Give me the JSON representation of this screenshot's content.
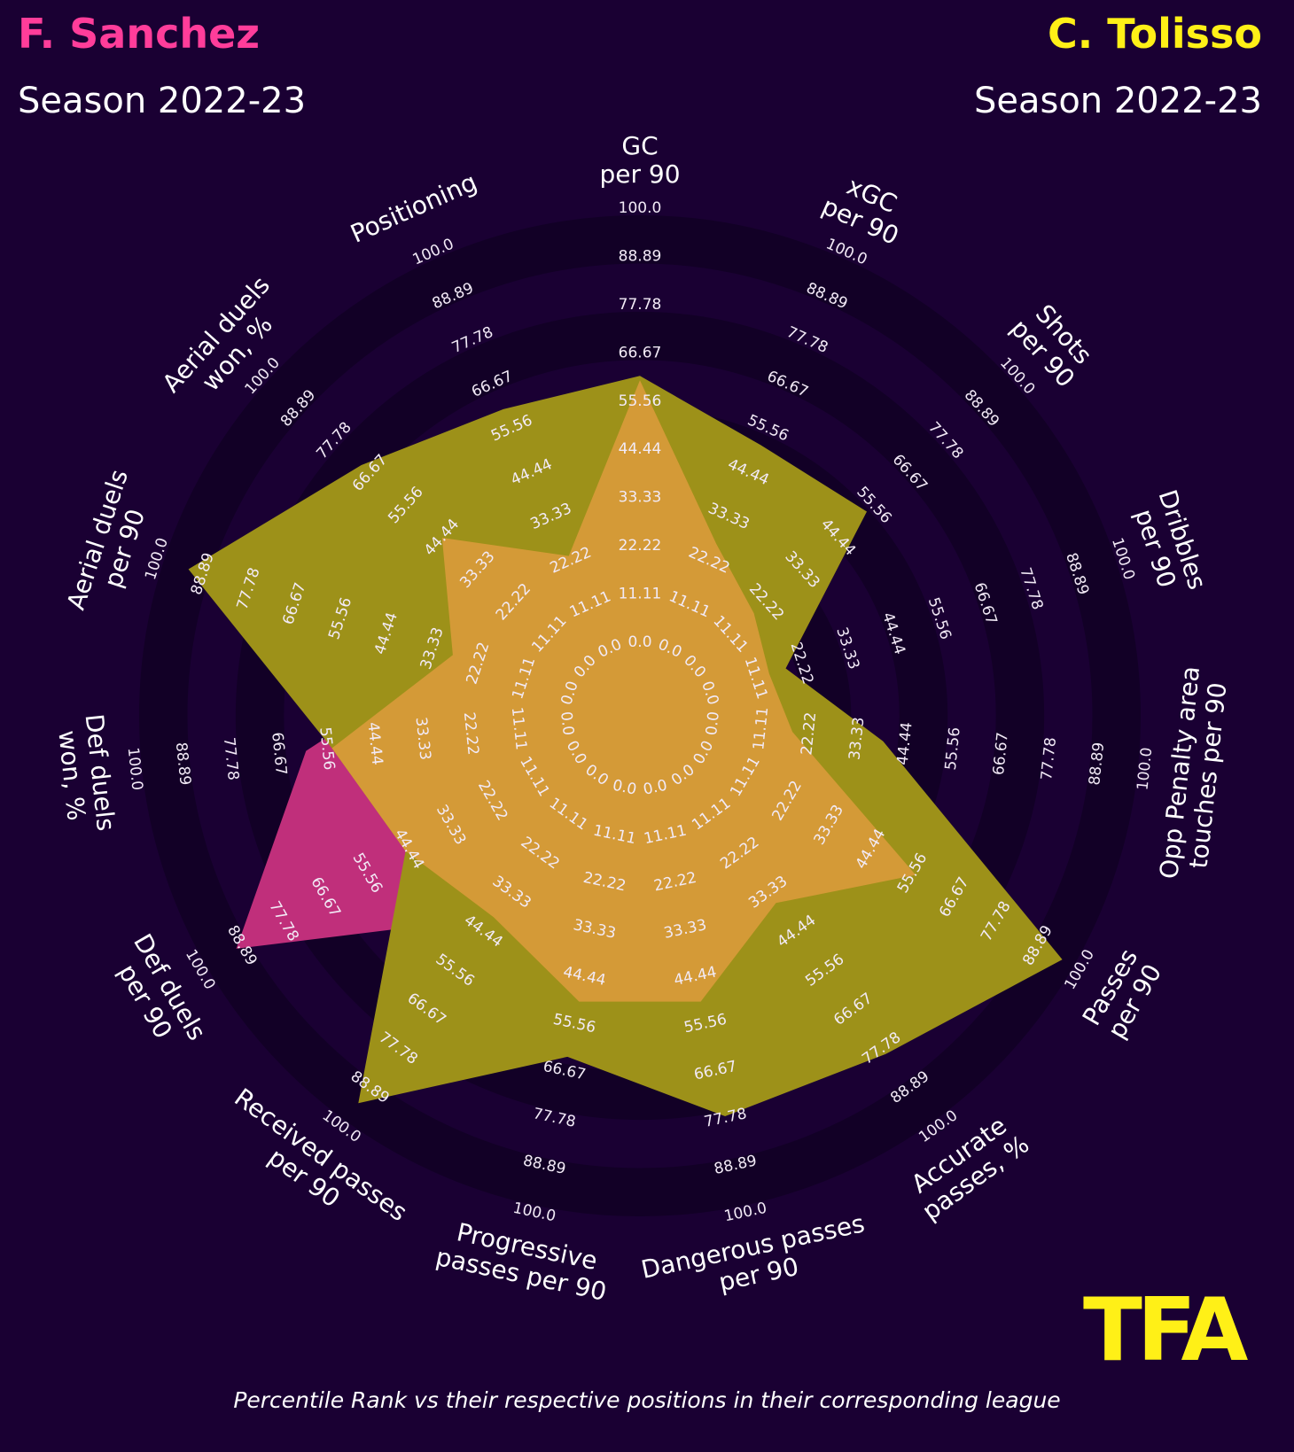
{
  "players": [
    {
      "name": "F. Sanchez",
      "season": "Season 2022-23",
      "color": "#ff3d9a"
    },
    {
      "name": "C. Tolisso",
      "season": "Season 2022-23",
      "color": "#fff017"
    }
  ],
  "logo": {
    "text": "TFA",
    "color": "#fff017"
  },
  "footnote": "Percentile Rank vs their respective positions in their corresponding league",
  "colors": {
    "background": "#1a0033",
    "ring_band": "#120026",
    "sanchez_fill": "#c02f7b",
    "tolisso_fill": "#9d9119",
    "overlap_fill": "#d49a37"
  },
  "chart_data": {
    "type": "radar",
    "axes": [
      "GC\nper 90",
      "xGC\nper 90",
      "Shots\nper 90",
      "Dribbles\nper 90",
      "Opp Penalty area\ntouches per 90",
      "Passes\nper 90",
      "Accurate\npasses, %",
      "Dangerous passes\nper 90",
      "Progressive\npasses per 90",
      "Received passes\nper 90",
      "Def duels\nper 90",
      "Def duels\nwon, %",
      "Aerial duels\nper 90",
      "Aerial duels\nwon, %",
      "Positioning"
    ],
    "ring_labels": [
      "0.0",
      "11.11",
      "22.22",
      "33.33",
      "44.44",
      "55.56",
      "66.67",
      "77.78",
      "88.89",
      "100.0"
    ],
    "range": [
      0,
      100
    ],
    "series": [
      {
        "name": "F. Sanchez",
        "values": [
          62,
          28,
          20,
          16,
          20,
          58,
          38,
          52,
          52,
          42,
          92,
          62,
          30,
          46,
          25
        ]
      },
      {
        "name": "C. Tolisso",
        "values": [
          63,
          53,
          55,
          20,
          41,
          97,
          81,
          79,
          65,
          95,
          47,
          56,
          94,
          71,
          62
        ]
      }
    ]
  }
}
